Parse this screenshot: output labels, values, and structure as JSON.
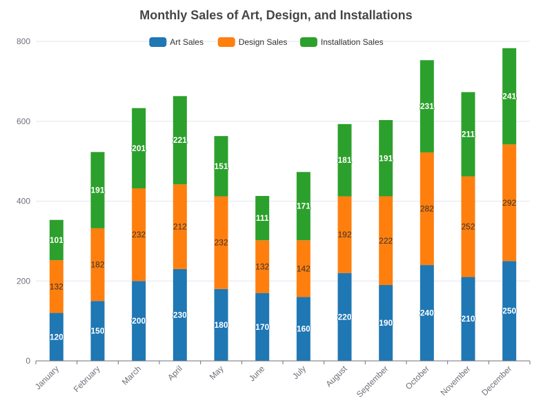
{
  "chart_data": {
    "type": "bar",
    "stacked": true,
    "title": "Monthly Sales of Art, Design, and Installations",
    "categories": [
      "January",
      "February",
      "March",
      "April",
      "May",
      "June",
      "July",
      "August",
      "September",
      "October",
      "November",
      "December"
    ],
    "series": [
      {
        "name": "Art Sales",
        "color": "#1f77b4",
        "values": [
          120,
          150,
          200,
          230,
          180,
          170,
          160,
          220,
          190,
          240,
          210,
          250
        ]
      },
      {
        "name": "Design Sales",
        "color": "#ff7f0e",
        "values": [
          132,
          182,
          232,
          212,
          232,
          132,
          142,
          192,
          222,
          282,
          252,
          292
        ]
      },
      {
        "name": "Installation Sales",
        "color": "#2ca02c",
        "values": [
          101,
          191,
          201,
          221,
          151,
          111,
          171,
          181,
          191,
          231,
          211,
          241
        ]
      }
    ],
    "ylim": [
      0,
      800
    ],
    "yticks": [
      0,
      200,
      400,
      600,
      800
    ],
    "grid": true,
    "legend_position": "top-center"
  }
}
